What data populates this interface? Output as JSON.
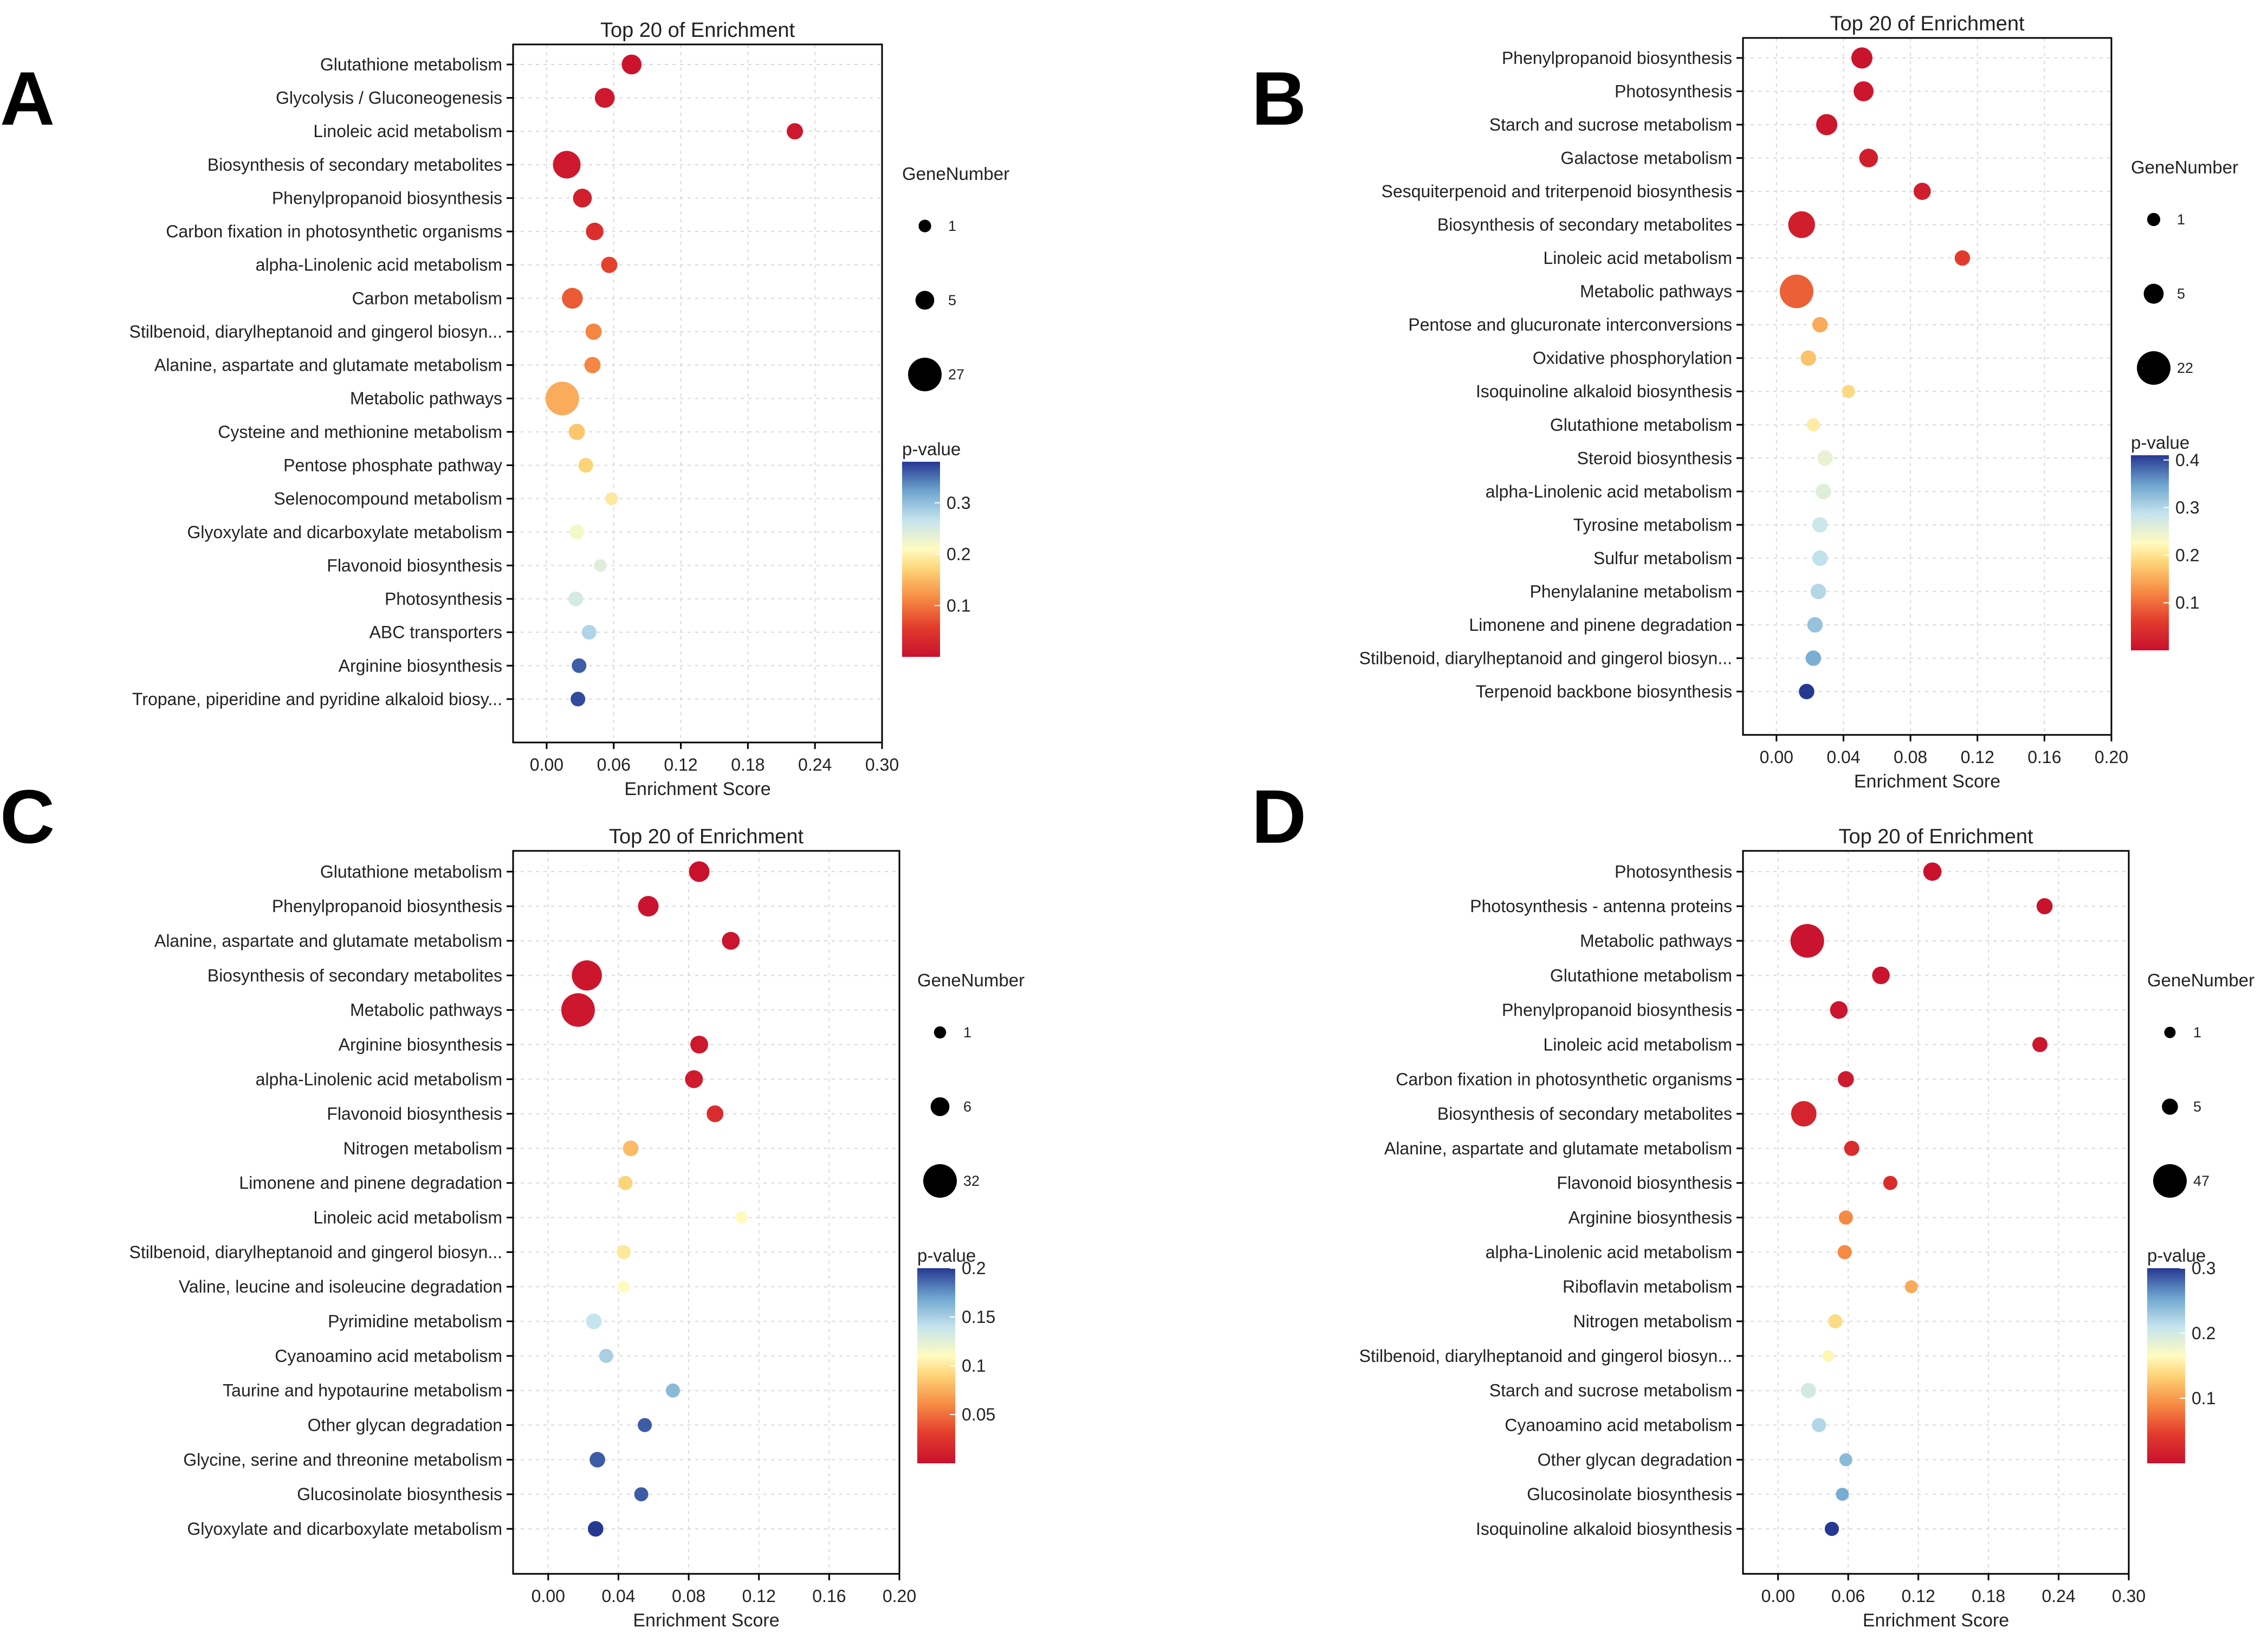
{
  "chart_data": [
    {
      "panel": "A",
      "type": "scatter",
      "title": "Top 20 of  Enrichment",
      "xlabel": "Enrichment Score",
      "xlim": [
        -0.03,
        0.3
      ],
      "xticks": [
        "0.00",
        "0.06",
        "0.12",
        "0.18",
        "0.24",
        "0.30"
      ],
      "grid": true,
      "size_legend": {
        "title": "GeneNumber",
        "values": [
          1,
          5,
          27
        ]
      },
      "color_legend": {
        "title": "p-value",
        "range": [
          0,
          0.38
        ],
        "ticks": [
          "0.1",
          "0.2",
          "0.3"
        ],
        "tick_values": [
          0.1,
          0.2,
          0.3
        ]
      },
      "points": [
        {
          "label": "Glutathione metabolism",
          "x": 0.076,
          "genes": 6,
          "p": 0.005
        },
        {
          "label": "Glycolysis / Gluconeogenesis",
          "x": 0.052,
          "genes": 6,
          "p": 0.01
        },
        {
          "label": "Linoleic acid metabolism",
          "x": 0.222,
          "genes": 3,
          "p": 0.01
        },
        {
          "label": "Biosynthesis of secondary metabolites",
          "x": 0.018,
          "genes": 16,
          "p": 0.01
        },
        {
          "label": "Phenylpropanoid biosynthesis",
          "x": 0.032,
          "genes": 5,
          "p": 0.02
        },
        {
          "label": "Carbon fixation in photosynthetic organisms",
          "x": 0.043,
          "genes": 4,
          "p": 0.04
        },
        {
          "label": "alpha-Linolenic acid metabolism",
          "x": 0.056,
          "genes": 3,
          "p": 0.06
        },
        {
          "label": "Carbon metabolism",
          "x": 0.023,
          "genes": 7,
          "p": 0.08
        },
        {
          "label": "Stilbenoid, diarylheptanoid and gingerol biosyn...",
          "x": 0.042,
          "genes": 3,
          "p": 0.11
        },
        {
          "label": "Alanine, aspartate and glutamate metabolism",
          "x": 0.041,
          "genes": 3,
          "p": 0.11
        },
        {
          "label": "Metabolic pathways",
          "x": 0.014,
          "genes": 27,
          "p": 0.14
        },
        {
          "label": "Cysteine and methionine metabolism",
          "x": 0.027,
          "genes": 3,
          "p": 0.16
        },
        {
          "label": "Pentose phosphate pathway",
          "x": 0.035,
          "genes": 2,
          "p": 0.17
        },
        {
          "label": "Selenocompound metabolism",
          "x": 0.058,
          "genes": 1,
          "p": 0.19
        },
        {
          "label": "Glyoxylate and dicarboxylate metabolism",
          "x": 0.027,
          "genes": 2,
          "p": 0.22
        },
        {
          "label": "Flavonoid biosynthesis",
          "x": 0.048,
          "genes": 1,
          "p": 0.24
        },
        {
          "label": "Photosynthesis",
          "x": 0.026,
          "genes": 2,
          "p": 0.25
        },
        {
          "label": "ABC transporters",
          "x": 0.038,
          "genes": 2,
          "p": 0.28
        },
        {
          "label": "Arginine biosynthesis",
          "x": 0.029,
          "genes": 2,
          "p": 0.36
        },
        {
          "label": "Tropane, piperidine and pyridine alkaloid biosy...",
          "x": 0.028,
          "genes": 2,
          "p": 0.37
        }
      ]
    },
    {
      "panel": "B",
      "type": "scatter",
      "title": "Top 20 of  Enrichment",
      "xlabel": "Enrichment Score",
      "xlim": [
        -0.02,
        0.2
      ],
      "xticks": [
        "0.00",
        "0.04",
        "0.08",
        "0.12",
        "0.16",
        "0.20"
      ],
      "grid": true,
      "size_legend": {
        "title": "GeneNumber",
        "values": [
          1,
          5,
          22
        ]
      },
      "color_legend": {
        "title": "p-value",
        "range": [
          0,
          0.41
        ],
        "ticks": [
          "0.1",
          "0.2",
          "0.3",
          "0.4"
        ],
        "tick_values": [
          0.1,
          0.2,
          0.3,
          0.4
        ]
      },
      "points": [
        {
          "label": "Phenylpropanoid biosynthesis",
          "x": 0.051,
          "genes": 6,
          "p": 0.005
        },
        {
          "label": "Photosynthesis",
          "x": 0.052,
          "genes": 5,
          "p": 0.008
        },
        {
          "label": "Starch and sucrose metabolism",
          "x": 0.03,
          "genes": 6,
          "p": 0.01
        },
        {
          "label": "Galactose metabolism",
          "x": 0.055,
          "genes": 4,
          "p": 0.02
        },
        {
          "label": "Sesquiterpenoid and triterpenoid biosynthesis",
          "x": 0.087,
          "genes": 3,
          "p": 0.02
        },
        {
          "label": "Biosynthesis of secondary metabolites",
          "x": 0.015,
          "genes": 12,
          "p": 0.02
        },
        {
          "label": "Linoleic acid metabolism",
          "x": 0.111,
          "genes": 2,
          "p": 0.06
        },
        {
          "label": "Metabolic pathways",
          "x": 0.012,
          "genes": 22,
          "p": 0.09
        },
        {
          "label": "Pentose and glucuronate interconversions",
          "x": 0.026,
          "genes": 2,
          "p": 0.15
        },
        {
          "label": "Oxidative phosphorylation",
          "x": 0.019,
          "genes": 2,
          "p": 0.17
        },
        {
          "label": "Isoquinoline alkaloid biosynthesis",
          "x": 0.043,
          "genes": 1,
          "p": 0.19
        },
        {
          "label": "Glutathione metabolism",
          "x": 0.022,
          "genes": 1,
          "p": 0.21
        },
        {
          "label": "Steroid biosynthesis",
          "x": 0.029,
          "genes": 2,
          "p": 0.25
        },
        {
          "label": "alpha-Linolenic acid metabolism",
          "x": 0.028,
          "genes": 2,
          "p": 0.26
        },
        {
          "label": "Tyrosine metabolism",
          "x": 0.026,
          "genes": 2,
          "p": 0.28
        },
        {
          "label": "Sulfur metabolism",
          "x": 0.026,
          "genes": 2,
          "p": 0.29
        },
        {
          "label": "Phenylalanine metabolism",
          "x": 0.025,
          "genes": 2,
          "p": 0.3
        },
        {
          "label": "Limonene and pinene degradation",
          "x": 0.023,
          "genes": 2,
          "p": 0.32
        },
        {
          "label": "Stilbenoid, diarylheptanoid and gingerol biosyn...",
          "x": 0.022,
          "genes": 2,
          "p": 0.34
        },
        {
          "label": "Terpenoid backbone biosynthesis",
          "x": 0.018,
          "genes": 2,
          "p": 0.41
        }
      ]
    },
    {
      "panel": "C",
      "type": "scatter",
      "title": "Top 20 of  Enrichment",
      "xlabel": "Enrichment Score",
      "xlim": [
        -0.02,
        0.2
      ],
      "xticks": [
        "0.00",
        "0.04",
        "0.08",
        "0.12",
        "0.16",
        "0.20"
      ],
      "grid": true,
      "size_legend": {
        "title": "GeneNumber",
        "values": [
          1,
          6,
          32
        ]
      },
      "color_legend": {
        "title": "p-value",
        "range": [
          0,
          0.2
        ],
        "ticks": [
          "0.2",
          "0.15",
          "0.1",
          "0.05"
        ],
        "tick_values": [
          0.2,
          0.15,
          0.1,
          0.05
        ]
      },
      "points": [
        {
          "label": "Glutathione metabolism",
          "x": 0.086,
          "genes": 8,
          "p": 0.001
        },
        {
          "label": "Phenylpropanoid biosynthesis",
          "x": 0.057,
          "genes": 8,
          "p": 0.002
        },
        {
          "label": "Alanine, aspartate and glutamate metabolism",
          "x": 0.104,
          "genes": 5,
          "p": 0.003
        },
        {
          "label": "Biosynthesis of secondary metabolites",
          "x": 0.022,
          "genes": 24,
          "p": 0.004
        },
        {
          "label": "Metabolic pathways",
          "x": 0.017,
          "genes": 32,
          "p": 0.005
        },
        {
          "label": "Arginine biosynthesis",
          "x": 0.086,
          "genes": 5,
          "p": 0.006
        },
        {
          "label": "alpha-Linolenic acid metabolism",
          "x": 0.083,
          "genes": 5,
          "p": 0.008
        },
        {
          "label": "Flavonoid biosynthesis",
          "x": 0.095,
          "genes": 4,
          "p": 0.02
        },
        {
          "label": "Nitrogen metabolism",
          "x": 0.047,
          "genes": 3,
          "p": 0.08
        },
        {
          "label": "Limonene and pinene degradation",
          "x": 0.044,
          "genes": 2,
          "p": 0.09
        },
        {
          "label": "Linoleic acid metabolism",
          "x": 0.11,
          "genes": 1,
          "p": 0.11
        },
        {
          "label": "Stilbenoid, diarylheptanoid and gingerol biosyn...",
          "x": 0.043,
          "genes": 2,
          "p": 0.1
        },
        {
          "label": "Valine, leucine and isoleucine degradation",
          "x": 0.043,
          "genes": 1,
          "p": 0.11
        },
        {
          "label": "Pyrimidine metabolism",
          "x": 0.026,
          "genes": 3,
          "p": 0.14
        },
        {
          "label": "Cyanoamino acid metabolism",
          "x": 0.033,
          "genes": 2,
          "p": 0.15
        },
        {
          "label": "Taurine and hypotaurine metabolism",
          "x": 0.071,
          "genes": 2,
          "p": 0.16
        },
        {
          "label": "Other glycan degradation",
          "x": 0.055,
          "genes": 2,
          "p": 0.19
        },
        {
          "label": "Glycine, serine and threonine metabolism",
          "x": 0.028,
          "genes": 3,
          "p": 0.19
        },
        {
          "label": "Glucosinolate biosynthesis",
          "x": 0.053,
          "genes": 2,
          "p": 0.19
        },
        {
          "label": "Glyoxylate and dicarboxylate metabolism",
          "x": 0.027,
          "genes": 3,
          "p": 0.2
        }
      ]
    },
    {
      "panel": "D",
      "type": "scatter",
      "title": "Top 20 of  Enrichment",
      "xlabel": "Enrichment Score",
      "xlim": [
        -0.03,
        0.3
      ],
      "xticks": [
        "0.00",
        "0.06",
        "0.12",
        "0.18",
        "0.24",
        "0.30"
      ],
      "grid": true,
      "size_legend": {
        "title": "GeneNumber",
        "values": [
          1,
          5,
          47
        ]
      },
      "color_legend": {
        "title": "p-value",
        "range": [
          0,
          0.3
        ],
        "ticks": [
          "0.3",
          "0.2",
          "0.1"
        ],
        "tick_values": [
          0.3,
          0.2,
          0.1
        ]
      },
      "points": [
        {
          "label": "Photosynthesis",
          "x": 0.132,
          "genes": 8,
          "p": 0.001
        },
        {
          "label": "Photosynthesis - antenna proteins",
          "x": 0.228,
          "genes": 5,
          "p": 0.002
        },
        {
          "label": "Metabolic pathways",
          "x": 0.025,
          "genes": 47,
          "p": 0.003
        },
        {
          "label": "Glutathione metabolism",
          "x": 0.088,
          "genes": 7,
          "p": 0.004
        },
        {
          "label": "Phenylpropanoid biosynthesis",
          "x": 0.052,
          "genes": 7,
          "p": 0.005
        },
        {
          "label": "Linoleic acid metabolism",
          "x": 0.224,
          "genes": 4,
          "p": 0.006
        },
        {
          "label": "Carbon fixation in photosynthetic organisms",
          "x": 0.058,
          "genes": 5,
          "p": 0.01
        },
        {
          "label": "Biosynthesis of secondary metabolites",
          "x": 0.022,
          "genes": 22,
          "p": 0.02
        },
        {
          "label": "Alanine, aspartate and glutamate metabolism",
          "x": 0.063,
          "genes": 4,
          "p": 0.03
        },
        {
          "label": "Flavonoid biosynthesis",
          "x": 0.096,
          "genes": 3,
          "p": 0.03
        },
        {
          "label": "Arginine biosynthesis",
          "x": 0.058,
          "genes": 3,
          "p": 0.09
        },
        {
          "label": "alpha-Linolenic acid metabolism",
          "x": 0.057,
          "genes": 3,
          "p": 0.09
        },
        {
          "label": "Riboflavin metabolism",
          "x": 0.114,
          "genes": 2,
          "p": 0.11
        },
        {
          "label": "Nitrogen metabolism",
          "x": 0.049,
          "genes": 3,
          "p": 0.14
        },
        {
          "label": "Stilbenoid, diarylheptanoid and gingerol biosyn...",
          "x": 0.043,
          "genes": 1,
          "p": 0.16
        },
        {
          "label": "Starch and sucrose metabolism",
          "x": 0.026,
          "genes": 4,
          "p": 0.2
        },
        {
          "label": "Cyanoamino acid metabolism",
          "x": 0.035,
          "genes": 3,
          "p": 0.22
        },
        {
          "label": "Other glycan degradation",
          "x": 0.058,
          "genes": 2,
          "p": 0.24
        },
        {
          "label": "Glucosinolate biosynthesis",
          "x": 0.055,
          "genes": 2,
          "p": 0.25
        },
        {
          "label": "Isoquinoline alkaloid biosynthesis",
          "x": 0.046,
          "genes": 3,
          "p": 0.3
        }
      ]
    }
  ]
}
